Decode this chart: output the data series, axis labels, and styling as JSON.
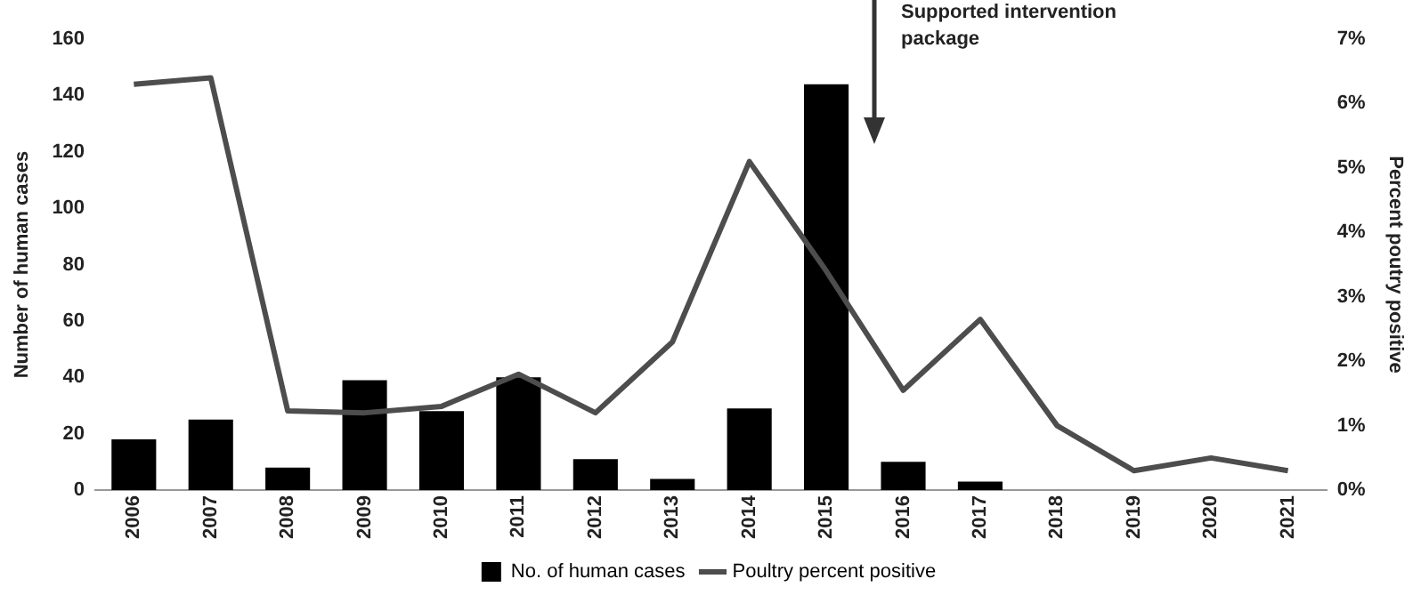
{
  "chart_data": {
    "type": "bar",
    "ylabel": "Number of human cases",
    "y2label": "Percent poutry positive",
    "categories": [
      "2006",
      "2007",
      "2008",
      "2009",
      "2010",
      "2011",
      "2012",
      "2013",
      "2014",
      "2015",
      "2016",
      "2017",
      "2018",
      "2019",
      "2020",
      "2021"
    ],
    "series": [
      {
        "name": "No. of human cases",
        "color": "#000000",
        "values": [
          18,
          25,
          8,
          39,
          28,
          40,
          11,
          4,
          29,
          144,
          10,
          3,
          0,
          0,
          0,
          0
        ]
      },
      {
        "name": "Poultry percent positive",
        "type": "line",
        "axis": "y2",
        "color": "#4d4d4d",
        "values": [
          6.3,
          6.4,
          1.23,
          1.2,
          1.3,
          1.8,
          1.2,
          2.3,
          5.1,
          3.4,
          1.55,
          2.65,
          1.0,
          0.3,
          0.5,
          0.3
        ]
      }
    ],
    "ylim": [
      0,
      160
    ],
    "yticks": [
      0,
      20,
      40,
      60,
      80,
      100,
      120,
      140,
      160
    ],
    "y2lim": [
      0,
      7
    ],
    "y2ticks": [
      {
        "value": 0,
        "label": "0%"
      },
      {
        "value": 1,
        "label": "1%"
      },
      {
        "value": 2,
        "label": "2%"
      },
      {
        "value": 3,
        "label": "3%"
      },
      {
        "value": 4,
        "label": "4%"
      },
      {
        "value": 5,
        "label": "5%"
      },
      {
        "value": 6,
        "label": "6%"
      },
      {
        "value": 7,
        "label": "7%"
      }
    ],
    "annotations": [
      "Supported intervention package"
    ],
    "grid": false,
    "legend": "bottom",
    "marker": "none",
    "line_style": "solid"
  }
}
